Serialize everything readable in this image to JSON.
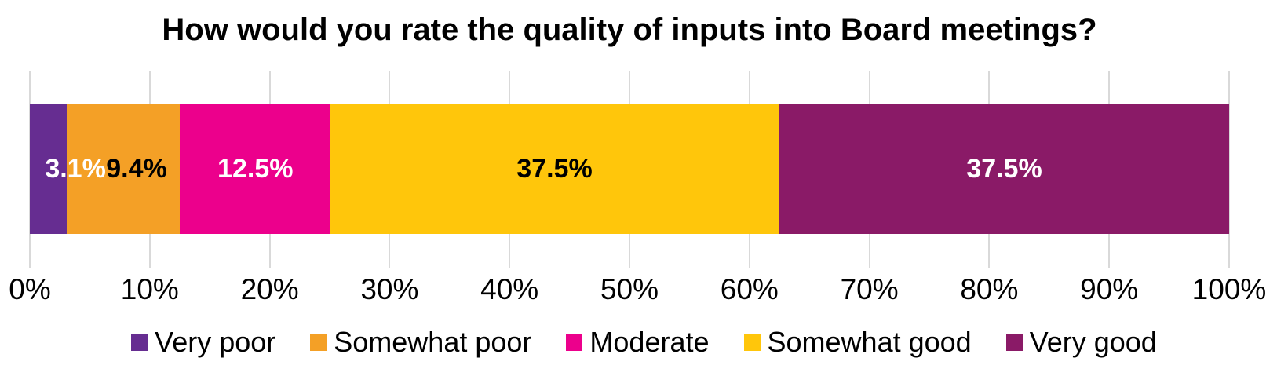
{
  "chart_data": {
    "type": "bar",
    "variant": "stacked-horizontal",
    "title": "How would you rate the quality of inputs into Board meetings?",
    "categories": [
      "Very poor",
      "Somewhat poor",
      "Moderate",
      "Somewhat good",
      "Very good"
    ],
    "values": [
      3.1,
      9.4,
      12.5,
      37.5,
      37.5
    ],
    "data_labels": [
      "3.1%",
      "9.4%",
      "12.5%",
      "37.5%",
      "37.5%"
    ],
    "segment_colors": [
      "#662D91",
      "#F4A026",
      "#EC008C",
      "#FFC60B",
      "#8A1A67"
    ],
    "data_label_colors": [
      "#FFFFFF",
      "#000000",
      "#FFFFFF",
      "#000000",
      "#FFFFFF"
    ],
    "data_label_centers_pct": [
      3.8,
      8.9,
      18.8,
      43.75,
      81.25
    ],
    "x_axis": {
      "range": [
        0,
        100
      ],
      "tick_step": 10,
      "tick_labels": [
        "0%",
        "10%",
        "20%",
        "30%",
        "40%",
        "50%",
        "60%",
        "70%",
        "80%",
        "90%",
        "100%"
      ]
    },
    "gridlines": {
      "show": true,
      "orientation": "vertical",
      "color": "#D9D9D9"
    },
    "legend": {
      "position": "bottom",
      "items": [
        {
          "label": "Very poor",
          "color": "#662D91"
        },
        {
          "label": "Somewhat poor",
          "color": "#F4A026"
        },
        {
          "label": "Moderate",
          "color": "#EC008C"
        },
        {
          "label": "Somewhat good",
          "color": "#FFC60B"
        },
        {
          "label": "Very good",
          "color": "#8A1A67"
        }
      ]
    }
  }
}
